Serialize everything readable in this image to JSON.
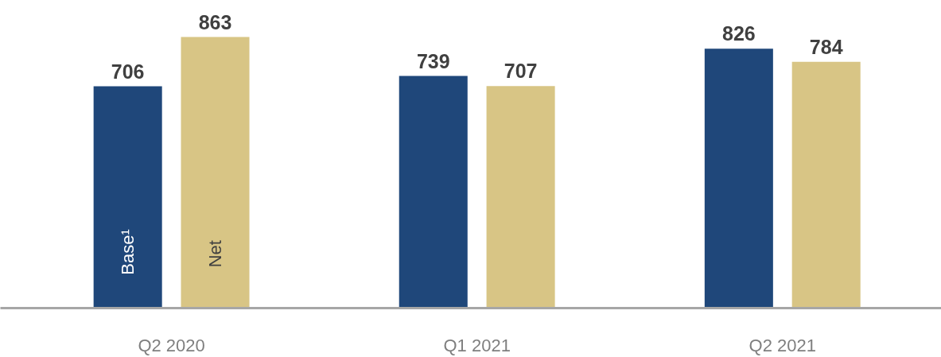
{
  "chart_data": {
    "type": "bar",
    "categories": [
      "Q2 2020",
      "Q1 2021",
      "Q2 2021"
    ],
    "data_labels": true,
    "series": [
      {
        "name": "Base¹",
        "color": "#1f477a",
        "values": [
          706,
          739,
          826
        ]
      },
      {
        "name": "Net",
        "color": "#d8c585",
        "values": [
          863,
          707,
          784
        ]
      }
    ]
  }
}
